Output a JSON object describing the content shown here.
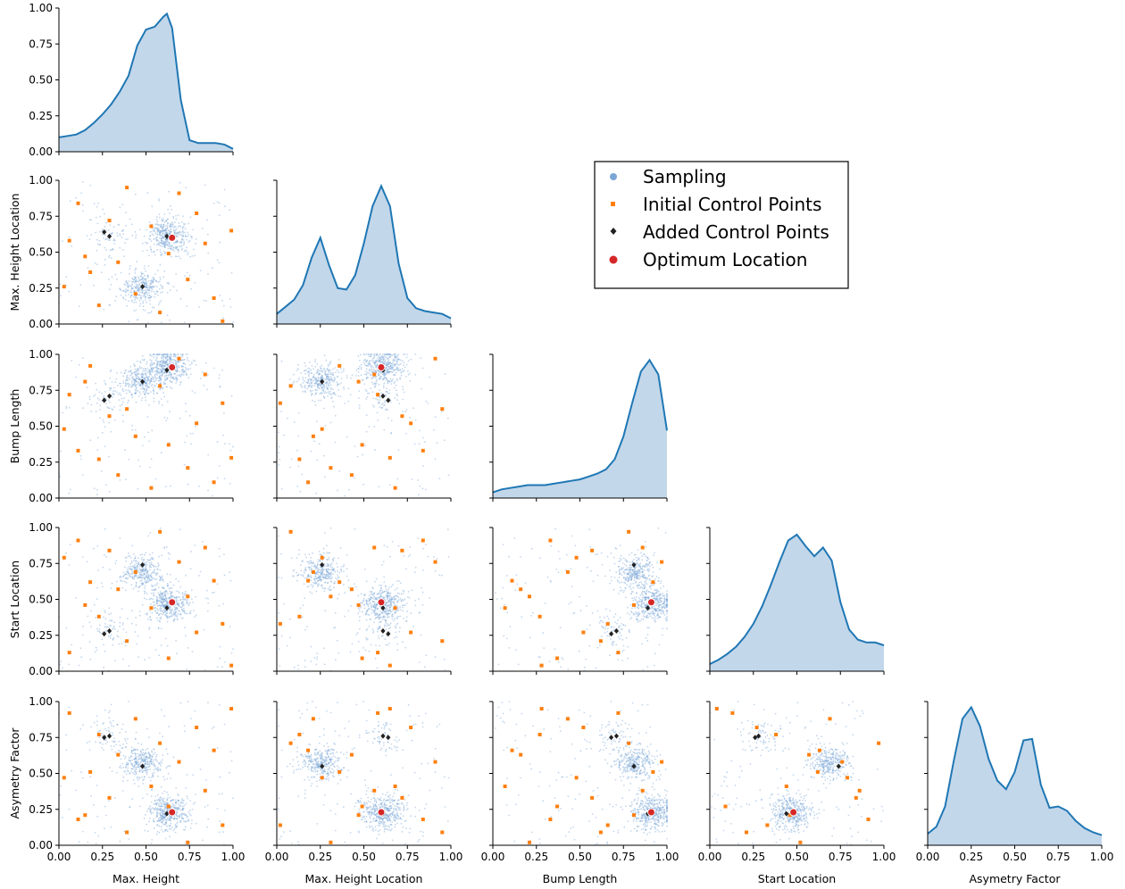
{
  "chart_data": {
    "type": "scatter",
    "variables": [
      "Max. Height",
      "Max. Height Location",
      "Bump Length",
      "Start Location",
      "Asymetry Factor"
    ],
    "axis_range": [
      0,
      1
    ],
    "tick_labels": [
      "0.00",
      "0.25",
      "0.50",
      "0.75",
      "1.00"
    ],
    "grid": false,
    "legend_position": "top-right",
    "legend": [
      "Sampling",
      "Initial Control Points",
      "Added Control Points",
      "Optimum Location"
    ],
    "colors": {
      "sampling": "#7aa6d6",
      "initial": "#ff7f0e",
      "added": "#222222",
      "optimum": "#d62728",
      "kde_line": "#1f77b4",
      "kde_fill": "#c3d7ea"
    },
    "optimum": [
      0.65,
      0.6,
      0.91,
      0.48,
      0.23
    ],
    "added_control_points": [
      [
        0.62,
        0.61,
        0.89,
        0.44,
        0.22
      ],
      [
        0.48,
        0.26,
        0.81,
        0.74,
        0.55
      ],
      [
        0.26,
        0.64,
        0.68,
        0.26,
        0.75
      ],
      [
        0.29,
        0.61,
        0.71,
        0.28,
        0.76
      ]
    ],
    "initial_control_points": [
      [
        0.06,
        0.58,
        0.72,
        0.13,
        0.92
      ],
      [
        0.11,
        0.84,
        0.33,
        0.91,
        0.18
      ],
      [
        0.18,
        0.36,
        0.92,
        0.62,
        0.51
      ],
      [
        0.23,
        0.13,
        0.27,
        0.38,
        0.77
      ],
      [
        0.29,
        0.72,
        0.57,
        0.84,
        0.33
      ],
      [
        0.34,
        0.43,
        0.16,
        0.57,
        0.63
      ],
      [
        0.39,
        0.95,
        0.62,
        0.21,
        0.09
      ],
      [
        0.44,
        0.21,
        0.43,
        0.69,
        0.88
      ],
      [
        0.53,
        0.68,
        0.07,
        0.44,
        0.41
      ],
      [
        0.58,
        0.08,
        0.78,
        0.97,
        0.71
      ],
      [
        0.63,
        0.49,
        0.37,
        0.09,
        0.27
      ],
      [
        0.69,
        0.91,
        0.97,
        0.76,
        0.58
      ],
      [
        0.74,
        0.31,
        0.21,
        0.52,
        0.02
      ],
      [
        0.79,
        0.77,
        0.52,
        0.27,
        0.82
      ],
      [
        0.84,
        0.56,
        0.86,
        0.86,
        0.38
      ],
      [
        0.89,
        0.18,
        0.11,
        0.63,
        0.66
      ],
      [
        0.94,
        0.02,
        0.66,
        0.33,
        0.14
      ],
      [
        0.99,
        0.65,
        0.28,
        0.04,
        0.95
      ],
      [
        0.03,
        0.26,
        0.48,
        0.79,
        0.47
      ],
      [
        0.15,
        0.47,
        0.81,
        0.46,
        0.21
      ]
    ],
    "sampling_clusters": [
      {
        "center": [
          0.63,
          0.61,
          0.92,
          0.47,
          0.23
        ],
        "weight": 0.45
      },
      {
        "center": [
          0.48,
          0.26,
          0.82,
          0.68,
          0.57
        ],
        "weight": 0.3
      },
      {
        "center": [
          0.3,
          0.62,
          0.7,
          0.3,
          0.76
        ],
        "weight": 0.08
      }
    ],
    "kde": [
      {
        "x": [
          0,
          0.05,
          0.1,
          0.15,
          0.2,
          0.25,
          0.3,
          0.35,
          0.4,
          0.45,
          0.5,
          0.55,
          0.6,
          0.62,
          0.65,
          0.7,
          0.75,
          0.8,
          0.85,
          0.9,
          0.95,
          1.0
        ],
        "y": [
          0.1,
          0.11,
          0.12,
          0.15,
          0.2,
          0.26,
          0.33,
          0.42,
          0.53,
          0.74,
          0.85,
          0.87,
          0.94,
          0.96,
          0.86,
          0.36,
          0.08,
          0.06,
          0.06,
          0.06,
          0.05,
          0.02
        ]
      },
      {
        "x": [
          0,
          0.05,
          0.1,
          0.15,
          0.2,
          0.25,
          0.3,
          0.35,
          0.4,
          0.45,
          0.5,
          0.55,
          0.6,
          0.65,
          0.7,
          0.75,
          0.8,
          0.85,
          0.9,
          0.95,
          1.0
        ],
        "y": [
          0.07,
          0.12,
          0.17,
          0.27,
          0.46,
          0.6,
          0.41,
          0.25,
          0.24,
          0.34,
          0.56,
          0.82,
          0.96,
          0.82,
          0.42,
          0.18,
          0.11,
          0.09,
          0.08,
          0.07,
          0.04
        ]
      },
      {
        "x": [
          0,
          0.05,
          0.1,
          0.15,
          0.2,
          0.25,
          0.3,
          0.35,
          0.4,
          0.45,
          0.5,
          0.55,
          0.6,
          0.65,
          0.7,
          0.75,
          0.8,
          0.85,
          0.9,
          0.95,
          1.0
        ],
        "y": [
          0.04,
          0.06,
          0.07,
          0.08,
          0.09,
          0.09,
          0.09,
          0.1,
          0.11,
          0.12,
          0.13,
          0.15,
          0.17,
          0.2,
          0.27,
          0.43,
          0.66,
          0.88,
          0.96,
          0.86,
          0.47
        ]
      },
      {
        "x": [
          0,
          0.05,
          0.1,
          0.15,
          0.2,
          0.25,
          0.3,
          0.35,
          0.4,
          0.45,
          0.5,
          0.55,
          0.6,
          0.65,
          0.7,
          0.75,
          0.8,
          0.85,
          0.9,
          0.95,
          1.0
        ],
        "y": [
          0.05,
          0.08,
          0.12,
          0.17,
          0.24,
          0.33,
          0.45,
          0.6,
          0.76,
          0.91,
          0.95,
          0.87,
          0.8,
          0.86,
          0.77,
          0.48,
          0.29,
          0.22,
          0.2,
          0.2,
          0.18
        ]
      },
      {
        "x": [
          0,
          0.05,
          0.1,
          0.15,
          0.2,
          0.25,
          0.3,
          0.35,
          0.4,
          0.45,
          0.5,
          0.55,
          0.6,
          0.65,
          0.7,
          0.75,
          0.8,
          0.85,
          0.9,
          0.95,
          1.0
        ],
        "y": [
          0.08,
          0.13,
          0.27,
          0.59,
          0.88,
          0.96,
          0.83,
          0.6,
          0.45,
          0.39,
          0.51,
          0.73,
          0.74,
          0.42,
          0.26,
          0.27,
          0.24,
          0.17,
          0.12,
          0.09,
          0.07
        ]
      }
    ],
    "kde_ylim": [
      0,
      1
    ]
  }
}
